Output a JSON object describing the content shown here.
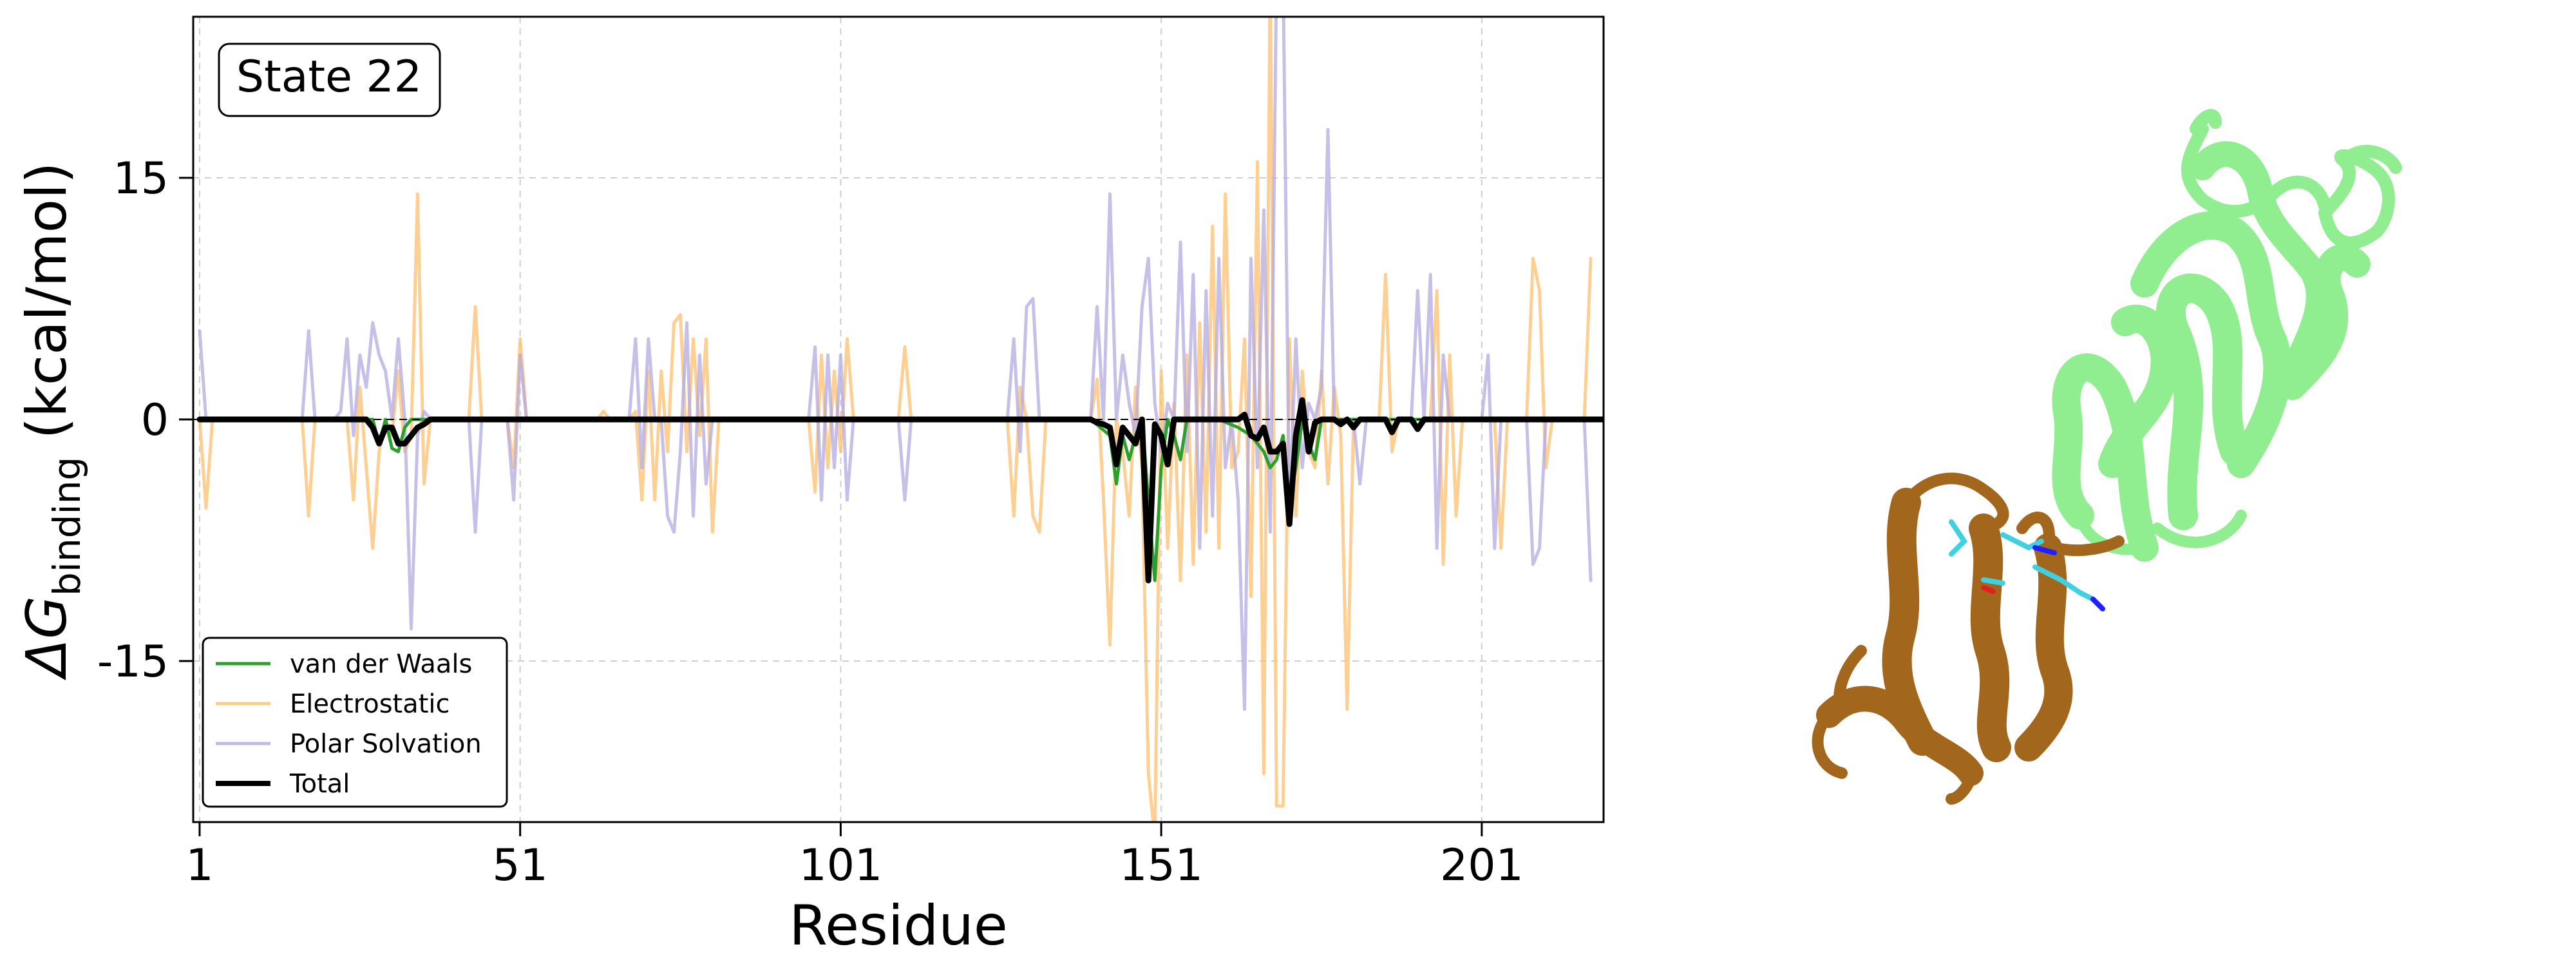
{
  "chart_data": {
    "type": "line",
    "annotation": "State 22",
    "xlabel": "Residue",
    "ylabel": "ΔG",
    "ylabel_subscript": "binding",
    "ylabel_units": " (kcal/mol)",
    "xlim": [
      0,
      220
    ],
    "ylim": [
      -25,
      25
    ],
    "xticks": [
      1,
      51,
      101,
      151,
      201
    ],
    "xtick_labels": [
      "1",
      "51",
      "101",
      "151",
      "201"
    ],
    "yticks": [
      -15,
      0,
      15
    ],
    "ytick_labels": [
      "-15",
      "0",
      "15"
    ],
    "grid": true,
    "legend_position": "lower-left",
    "series": [
      {
        "name": "van der Waals",
        "color": "#2ca02c",
        "points": [
          [
            1,
            0
          ],
          [
            28,
            0
          ],
          [
            29,
            -1.5
          ],
          [
            30,
            0
          ],
          [
            31,
            -1.8
          ],
          [
            32,
            -2
          ],
          [
            33,
            -0.5
          ],
          [
            34,
            0
          ],
          [
            140,
            0
          ],
          [
            143,
            -1
          ],
          [
            144,
            -4
          ],
          [
            145,
            -1
          ],
          [
            146,
            -2.5
          ],
          [
            147,
            -1
          ],
          [
            148,
            0
          ],
          [
            149,
            -5
          ],
          [
            150,
            -10
          ],
          [
            151,
            -3
          ],
          [
            152,
            0
          ],
          [
            153,
            -1
          ],
          [
            154,
            -2.5
          ],
          [
            155,
            0
          ],
          [
            160,
            0
          ],
          [
            163,
            -0.5
          ],
          [
            165,
            -1
          ],
          [
            166,
            -1.5
          ],
          [
            167,
            -2
          ],
          [
            168,
            -3
          ],
          [
            169,
            -2.5
          ],
          [
            170,
            -1
          ],
          [
            171,
            -5
          ],
          [
            172,
            -3
          ],
          [
            173,
            0
          ],
          [
            174,
            -1.5
          ],
          [
            175,
            -2.5
          ],
          [
            176,
            0
          ],
          [
            220,
            0
          ]
        ]
      },
      {
        "name": "Electrostatic",
        "color": "#fdbf6f",
        "points": [
          [
            1,
            0
          ],
          [
            2,
            -5.5
          ],
          [
            3,
            0
          ],
          [
            17,
            0
          ],
          [
            18,
            -6
          ],
          [
            19,
            0
          ],
          [
            24,
            0
          ],
          [
            25,
            -5
          ],
          [
            26,
            2
          ],
          [
            27,
            -3
          ],
          [
            28,
            -8
          ],
          [
            29,
            -2
          ],
          [
            30,
            0
          ],
          [
            31,
            -1
          ],
          [
            32,
            3
          ],
          [
            33,
            -2
          ],
          [
            34,
            -1
          ],
          [
            35,
            14
          ],
          [
            36,
            -4
          ],
          [
            37,
            0
          ],
          [
            43,
            0
          ],
          [
            44,
            7
          ],
          [
            45,
            0
          ],
          [
            49,
            0
          ],
          [
            50,
            -3
          ],
          [
            51,
            5
          ],
          [
            52,
            0
          ],
          [
            63,
            0
          ],
          [
            64,
            0.5
          ],
          [
            65,
            0
          ],
          [
            68,
            0
          ],
          [
            69,
            0.5
          ],
          [
            70,
            -5
          ],
          [
            71,
            3
          ],
          [
            72,
            -5
          ],
          [
            73,
            3
          ],
          [
            74,
            -2
          ],
          [
            75,
            6
          ],
          [
            76,
            6.5
          ],
          [
            77,
            -2
          ],
          [
            78,
            5
          ],
          [
            79,
            -1
          ],
          [
            80,
            5
          ],
          [
            81,
            -7
          ],
          [
            82,
            0
          ],
          [
            96,
            0
          ],
          [
            97,
            -4.5
          ],
          [
            98,
            4
          ],
          [
            99,
            -3
          ],
          [
            100,
            3
          ],
          [
            101,
            -2
          ],
          [
            102,
            5
          ],
          [
            103,
            0
          ],
          [
            110,
            0
          ],
          [
            111,
            4.5
          ],
          [
            112,
            0
          ],
          [
            127,
            0
          ],
          [
            128,
            -6
          ],
          [
            129,
            2
          ],
          [
            130,
            0
          ],
          [
            131,
            -6
          ],
          [
            132,
            -7
          ],
          [
            133,
            0
          ],
          [
            140,
            0
          ],
          [
            141,
            2.5
          ],
          [
            142,
            -5
          ],
          [
            143,
            -14
          ],
          [
            144,
            0
          ],
          [
            145,
            -2
          ],
          [
            146,
            -6
          ],
          [
            147,
            2
          ],
          [
            148,
            -3
          ],
          [
            149,
            -22
          ],
          [
            150,
            -26
          ],
          [
            151,
            3
          ],
          [
            152,
            -8
          ],
          [
            153,
            1
          ],
          [
            154,
            -10
          ],
          [
            155,
            4
          ],
          [
            156,
            -9
          ],
          [
            157,
            6
          ],
          [
            158,
            -7
          ],
          [
            159,
            12
          ],
          [
            160,
            -8
          ],
          [
            161,
            14
          ],
          [
            162,
            -3
          ],
          [
            163,
            -2
          ],
          [
            164,
            5
          ],
          [
            165,
            -11
          ],
          [
            166,
            16
          ],
          [
            167,
            -22
          ],
          [
            168,
            28
          ],
          [
            169,
            -24
          ],
          [
            170,
            -24
          ],
          [
            171,
            5
          ],
          [
            172,
            -6
          ],
          [
            173,
            3
          ],
          [
            174,
            -2
          ],
          [
            175,
            -3
          ],
          [
            176,
            3
          ],
          [
            177,
            -4
          ],
          [
            178,
            2
          ],
          [
            179,
            -1
          ],
          [
            180,
            -18
          ],
          [
            181,
            0
          ],
          [
            185,
            0
          ],
          [
            186,
            9
          ],
          [
            187,
            -2
          ],
          [
            188,
            0
          ],
          [
            193,
            0
          ],
          [
            194,
            8
          ],
          [
            195,
            -9
          ],
          [
            196,
            4
          ],
          [
            197,
            -6
          ],
          [
            198,
            0
          ],
          [
            203,
            0
          ],
          [
            204,
            -8
          ],
          [
            205,
            0
          ],
          [
            208,
            0
          ],
          [
            209,
            10
          ],
          [
            210,
            8
          ],
          [
            211,
            -3
          ],
          [
            212,
            0
          ],
          [
            217,
            0
          ],
          [
            218,
            10
          ]
        ]
      },
      {
        "name": "Polar Solvation",
        "color": "#b3a9e0",
        "points": [
          [
            1,
            5.5
          ],
          [
            2,
            0
          ],
          [
            17,
            0
          ],
          [
            18,
            5.5
          ],
          [
            19,
            0
          ],
          [
            20,
            0
          ],
          [
            22,
            0
          ],
          [
            23,
            0.5
          ],
          [
            24,
            5
          ],
          [
            25,
            -1
          ],
          [
            26,
            4
          ],
          [
            27,
            2
          ],
          [
            28,
            6
          ],
          [
            29,
            4
          ],
          [
            30,
            3
          ],
          [
            31,
            0
          ],
          [
            32,
            5
          ],
          [
            33,
            0
          ],
          [
            34,
            -13
          ],
          [
            35,
            -1
          ],
          [
            36,
            0.5
          ],
          [
            37,
            0
          ],
          [
            43,
            0
          ],
          [
            44,
            -7
          ],
          [
            45,
            0
          ],
          [
            49,
            0
          ],
          [
            50,
            -5
          ],
          [
            51,
            4
          ],
          [
            52,
            0
          ],
          [
            68,
            0
          ],
          [
            69,
            5
          ],
          [
            70,
            -3
          ],
          [
            71,
            5
          ],
          [
            72,
            0
          ],
          [
            73,
            0
          ],
          [
            74,
            -6
          ],
          [
            75,
            -7
          ],
          [
            76,
            -2
          ],
          [
            77,
            6
          ],
          [
            78,
            -6
          ],
          [
            79,
            4
          ],
          [
            80,
            -4
          ],
          [
            81,
            0
          ],
          [
            96,
            0
          ],
          [
            97,
            4.5
          ],
          [
            98,
            -5
          ],
          [
            99,
            4
          ],
          [
            100,
            -3
          ],
          [
            101,
            4
          ],
          [
            102,
            -5
          ],
          [
            103,
            0
          ],
          [
            110,
            0
          ],
          [
            111,
            -5
          ],
          [
            112,
            0
          ],
          [
            127,
            0
          ],
          [
            128,
            5
          ],
          [
            129,
            -2
          ],
          [
            130,
            7
          ],
          [
            131,
            7.5
          ],
          [
            132,
            0
          ],
          [
            140,
            0
          ],
          [
            141,
            7
          ],
          [
            142,
            0
          ],
          [
            143,
            14
          ],
          [
            144,
            0
          ],
          [
            145,
            4
          ],
          [
            146,
            1
          ],
          [
            147,
            -1
          ],
          [
            148,
            7
          ],
          [
            149,
            10
          ],
          [
            150,
            1
          ],
          [
            151,
            -2
          ],
          [
            152,
            1
          ],
          [
            153,
            0
          ],
          [
            154,
            11
          ],
          [
            155,
            -2
          ],
          [
            156,
            9
          ],
          [
            157,
            -8
          ],
          [
            158,
            8
          ],
          [
            159,
            -6
          ],
          [
            160,
            10
          ],
          [
            161,
            -3
          ],
          [
            162,
            0
          ],
          [
            163,
            -5
          ],
          [
            164,
            -18
          ],
          [
            165,
            10
          ],
          [
            166,
            -3
          ],
          [
            167,
            13
          ],
          [
            168,
            -7
          ],
          [
            169,
            28
          ],
          [
            170,
            28
          ],
          [
            171,
            -6
          ],
          [
            172,
            5
          ],
          [
            173,
            -3
          ],
          [
            174,
            1
          ],
          [
            175,
            0
          ],
          [
            176,
            2
          ],
          [
            177,
            18
          ],
          [
            178,
            0
          ],
          [
            181,
            0
          ],
          [
            182,
            -4
          ],
          [
            183,
            0
          ],
          [
            190,
            0
          ],
          [
            191,
            8
          ],
          [
            192,
            0
          ],
          [
            193,
            9
          ],
          [
            194,
            -8
          ],
          [
            195,
            4
          ],
          [
            196,
            0
          ],
          [
            201,
            0
          ],
          [
            202,
            4
          ],
          [
            203,
            -8
          ],
          [
            204,
            0
          ],
          [
            208,
            0
          ],
          [
            209,
            -9
          ],
          [
            210,
            -8
          ],
          [
            211,
            0
          ],
          [
            217,
            0
          ],
          [
            218,
            -10
          ]
        ]
      },
      {
        "name": "Total",
        "color": "#000000",
        "points": [
          [
            1,
            0
          ],
          [
            27,
            0
          ],
          [
            28,
            -0.5
          ],
          [
            29,
            -1.5
          ],
          [
            30,
            -0.5
          ],
          [
            31,
            -0.5
          ],
          [
            32,
            -1.5
          ],
          [
            33,
            -1.5
          ],
          [
            34,
            -1
          ],
          [
            35,
            -0.5
          ],
          [
            36,
            -0.3
          ],
          [
            37,
            0
          ],
          [
            140,
            0
          ],
          [
            141,
            -0.2
          ],
          [
            142,
            -0.3
          ],
          [
            143,
            -0.5
          ],
          [
            144,
            -2.8
          ],
          [
            145,
            -0.5
          ],
          [
            146,
            -1
          ],
          [
            147,
            -1.5
          ],
          [
            148,
            0
          ],
          [
            149,
            -10
          ],
          [
            150,
            -0.3
          ],
          [
            151,
            -1
          ],
          [
            152,
            -2.8
          ],
          [
            153,
            0
          ],
          [
            163,
            0
          ],
          [
            164,
            0.3
          ],
          [
            165,
            -1
          ],
          [
            166,
            -1.2
          ],
          [
            167,
            -0.5
          ],
          [
            168,
            -2
          ],
          [
            169,
            -2
          ],
          [
            170,
            -1.5
          ],
          [
            171,
            -6.5
          ],
          [
            172,
            -1
          ],
          [
            173,
            1.2
          ],
          [
            174,
            -2
          ],
          [
            175,
            -0.2
          ],
          [
            176,
            0
          ],
          [
            178,
            0
          ],
          [
            179,
            -0.3
          ],
          [
            180,
            0
          ],
          [
            181,
            -0.5
          ],
          [
            182,
            0
          ],
          [
            186,
            0
          ],
          [
            187,
            -0.8
          ],
          [
            188,
            0
          ],
          [
            190,
            0
          ],
          [
            191,
            -0.6
          ],
          [
            192,
            0
          ],
          [
            220,
            0
          ]
        ]
      }
    ]
  }
}
